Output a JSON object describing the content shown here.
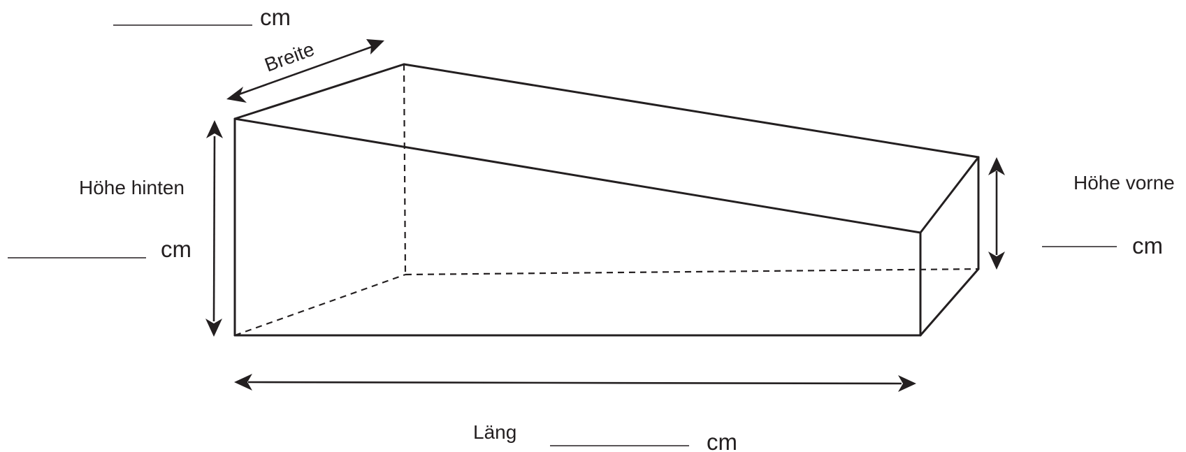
{
  "labels": {
    "breite": "Breite",
    "hoehe_hinten": "Höhe hinten",
    "hoehe_vorne": "Höhe vorne",
    "laenge": "Läng"
  },
  "units": {
    "breite": "cm",
    "hoehe_hinten": "cm",
    "hoehe_vorne": "cm",
    "laenge": "cm"
  },
  "colors": {
    "ink": "#231f20",
    "background": "#ffffff"
  }
}
